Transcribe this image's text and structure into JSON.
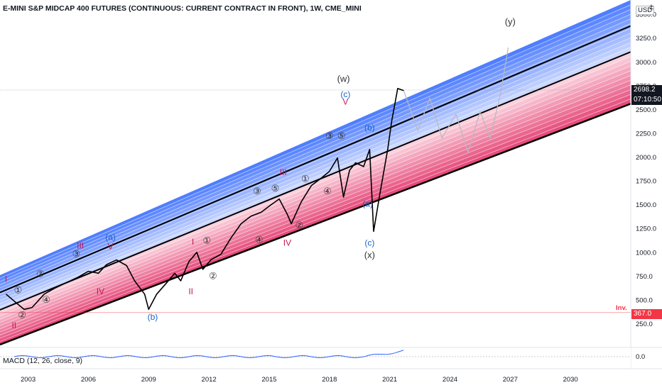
{
  "header": {
    "title": "E-MINI S&P MIDCAP 400 FUTURES (CONTINUOUS: CURRENT CONTRACT IN FRONT), 1W, CME_MINI"
  },
  "currency_badge": "USD",
  "settings_glyph": "±",
  "gear_icon": "gear-icon",
  "macd_label": "MACD (12, 26, close, 9)",
  "last_price": {
    "value": "2698.2",
    "countdown": "07:10:50",
    "color": "#131722"
  },
  "invalidation": {
    "label": "Inv.",
    "value": "367.0",
    "color": "#f23645"
  },
  "colors": {
    "channel_blue_dark": "#2962ff",
    "channel_blue_light": "#c9d6ff",
    "channel_pink_light": "#fbd0dc",
    "channel_pink_dark": "#e0245e",
    "wave_red": "#c2185b",
    "wave_blue": "#1e63c8"
  },
  "chart_data": {
    "type": "line",
    "title": "E-MINI S&P MIDCAP 400 FUTURES (CONTINUOUS: CURRENT CONTRACT IN FRONT), 1W, CME_MINI",
    "x_ticks": [
      "2003",
      "2006",
      "2009",
      "2012",
      "2015",
      "2018",
      "2021",
      "2024",
      "2027",
      "2030"
    ],
    "y_ticks": [
      "250.0",
      "500.0",
      "750.0",
      "1000.0",
      "1250.0",
      "1500.0",
      "1750.0",
      "2000.0",
      "2250.0",
      "2500.0",
      "2750.0",
      "3000.0",
      "3250.0",
      "3500.0"
    ],
    "ylim": [
      0,
      3650
    ],
    "xlim": [
      2001.6,
      2033.0
    ],
    "price_series": {
      "x": [
        2001.9,
        2002.4,
        2002.8,
        2003.2,
        2003.8,
        2004.3,
        2004.9,
        2005.5,
        2006.0,
        2006.5,
        2006.9,
        2007.4,
        2007.9,
        2008.3,
        2008.8,
        2009.0,
        2009.4,
        2009.9,
        2010.3,
        2010.6,
        2011.0,
        2011.4,
        2011.7,
        2012.1,
        2012.6,
        2013.1,
        2013.6,
        2014.1,
        2014.6,
        2015.1,
        2015.5,
        2015.9,
        2016.1,
        2016.6,
        2017.1,
        2017.6,
        2018.0,
        2018.4,
        2018.7,
        2019.0,
        2019.3,
        2019.7,
        2020.0,
        2020.2,
        2020.5,
        2020.9,
        2021.1,
        2021.4,
        2021.7
      ],
      "y": [
        560,
        470,
        400,
        420,
        560,
        620,
        680,
        740,
        800,
        780,
        870,
        920,
        860,
        700,
        560,
        400,
        560,
        680,
        780,
        700,
        900,
        1000,
        820,
        920,
        980,
        1150,
        1300,
        1380,
        1420,
        1500,
        1560,
        1400,
        1300,
        1530,
        1700,
        1780,
        1850,
        1990,
        1580,
        1860,
        1940,
        1900,
        2080,
        1220,
        1600,
        2080,
        2380,
        2720,
        2698
      ]
    },
    "projection": {
      "x": [
        2021.7,
        2022.4,
        2023.0,
        2023.6,
        2024.3,
        2024.9,
        2025.5,
        2026.0,
        2026.5,
        2026.9
      ],
      "y": [
        2698,
        2280,
        2620,
        2200,
        2450,
        2050,
        2480,
        2200,
        2650,
        3150
      ]
    },
    "channel": {
      "base_line": {
        "x": [
          2001.6,
          2033.0
        ],
        "y": [
          30,
          2560
        ]
      },
      "top_line": {
        "x": [
          2001.6,
          2033.0
        ],
        "y": [
          760,
          3650
        ]
      }
    },
    "wave_labels": [
      {
        "text": "I",
        "x": 2001.9,
        "y": 690,
        "color": "red"
      },
      {
        "text": "①",
        "x": 2002.5,
        "y": 570,
        "color": "gray"
      },
      {
        "text": "②",
        "x": 2003.6,
        "y": 740,
        "color": "gray"
      },
      {
        "text": "③",
        "x": 2005.4,
        "y": 950,
        "color": "gray"
      },
      {
        "text": "④",
        "x": 2003.9,
        "y": 470,
        "color": "gray"
      },
      {
        "text": "IV",
        "x": 2006.6,
        "y": 560,
        "color": "red"
      },
      {
        "text": "II",
        "x": 2002.3,
        "y": 200,
        "color": "red"
      },
      {
        "text": "②",
        "x": 2002.7,
        "y": 310,
        "color": "gray"
      },
      {
        "text": "III",
        "x": 2005.6,
        "y": 1040,
        "color": "red"
      },
      {
        "text": "V",
        "x": 2007.1,
        "y": 1030,
        "color": "red"
      },
      {
        "text": "(a)",
        "x": 2007.1,
        "y": 1130,
        "color": "blue"
      },
      {
        "text": "(b)",
        "x": 2009.2,
        "y": 290,
        "color": "blue"
      },
      {
        "text": "I",
        "x": 2011.2,
        "y": 1080,
        "color": "red"
      },
      {
        "text": "①",
        "x": 2011.9,
        "y": 1090,
        "color": "gray"
      },
      {
        "text": "②",
        "x": 2012.2,
        "y": 720,
        "color": "gray"
      },
      {
        "text": "II",
        "x": 2011.1,
        "y": 560,
        "color": "red"
      },
      {
        "text": "③",
        "x": 2014.4,
        "y": 1610,
        "color": "gray"
      },
      {
        "text": "④",
        "x": 2014.5,
        "y": 1100,
        "color": "gray"
      },
      {
        "text": "⑤",
        "x": 2015.3,
        "y": 1640,
        "color": "gray"
      },
      {
        "text": "①",
        "x": 2016.8,
        "y": 1740,
        "color": "gray"
      },
      {
        "text": "②",
        "x": 2016.5,
        "y": 1250,
        "color": "gray"
      },
      {
        "text": "IV",
        "x": 2015.9,
        "y": 1070,
        "color": "red"
      },
      {
        "text": "III",
        "x": 2015.7,
        "y": 1810,
        "color": "red"
      },
      {
        "text": "③",
        "x": 2018.0,
        "y": 2190,
        "color": "gray"
      },
      {
        "text": "④",
        "x": 2017.9,
        "y": 1610,
        "color": "gray"
      },
      {
        "text": "⑤",
        "x": 2018.6,
        "y": 2190,
        "color": "gray"
      },
      {
        "text": "V",
        "x": 2018.8,
        "y": 2550,
        "color": "red"
      },
      {
        "text": "(c)",
        "x": 2018.8,
        "y": 2630,
        "color": "blue"
      },
      {
        "text": "(w)",
        "x": 2018.7,
        "y": 2790,
        "color": "gray"
      },
      {
        "text": "(b)",
        "x": 2020.0,
        "y": 2280,
        "color": "blue"
      },
      {
        "text": "(a)",
        "x": 2019.9,
        "y": 1480,
        "color": "blue"
      },
      {
        "text": "(c)",
        "x": 2020.0,
        "y": 1070,
        "color": "blue"
      },
      {
        "text": "(x)",
        "x": 2020.0,
        "y": 940,
        "color": "gray"
      },
      {
        "text": "(y)",
        "x": 2027.0,
        "y": 3390,
        "color": "gray"
      }
    ]
  }
}
